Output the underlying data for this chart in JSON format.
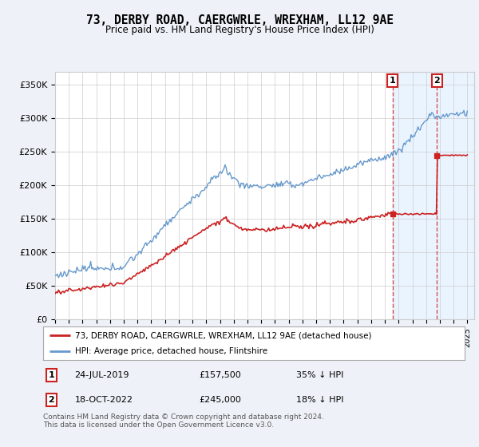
{
  "title": "73, DERBY ROAD, CAERGWRLE, WREXHAM, LL12 9AE",
  "subtitle": "Price paid vs. HM Land Registry's House Price Index (HPI)",
  "ylim": [
    0,
    370000
  ],
  "yticks": [
    0,
    50000,
    100000,
    150000,
    200000,
    250000,
    300000,
    350000
  ],
  "ytick_labels": [
    "£0",
    "£50K",
    "£100K",
    "£150K",
    "£200K",
    "£250K",
    "£300K",
    "£350K"
  ],
  "hpi_color": "#6699cc",
  "price_color": "#cc2222",
  "shade_color": "#ddeeff",
  "marker1": {
    "date_num": 2019.56,
    "value": 157500,
    "label": "1",
    "date_str": "24-JUL-2019",
    "price_str": "£157,500",
    "pct_str": "35% ↓ HPI"
  },
  "marker2": {
    "date_num": 2022.79,
    "value": 245000,
    "label": "2",
    "date_str": "18-OCT-2022",
    "price_str": "£245,000",
    "pct_str": "18% ↓ HPI"
  },
  "legend_line1": "73, DERBY ROAD, CAERGWRLE, WREXHAM, LL12 9AE (detached house)",
  "legend_line2": "HPI: Average price, detached house, Flintshire",
  "footnote": "Contains HM Land Registry data © Crown copyright and database right 2024.\nThis data is licensed under the Open Government Licence v3.0.",
  "background_color": "#eef2f8",
  "plot_bg": "#ffffff",
  "grid_color": "#cccccc",
  "xtick_years": [
    1995,
    1996,
    1997,
    1998,
    1999,
    2000,
    2001,
    2002,
    2003,
    2004,
    2005,
    2006,
    2007,
    2008,
    2009,
    2010,
    2011,
    2012,
    2013,
    2014,
    2015,
    2016,
    2017,
    2018,
    2019,
    2020,
    2021,
    2022,
    2023,
    2024,
    2025
  ]
}
